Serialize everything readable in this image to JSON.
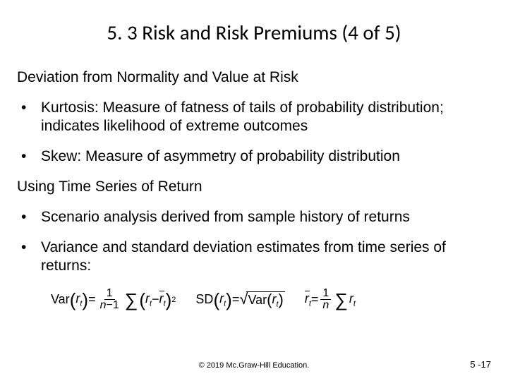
{
  "title": "5. 3 Risk and Risk Premiums (4 of 5)",
  "section1": {
    "heading": "Deviation from Normality and Value at Risk",
    "bullets": [
      "Kurtosis: Measure of fatness of tails of probability distribution; indicates likelihood of extreme outcomes",
      "Skew: Measure of asymmetry of probability distribution"
    ]
  },
  "section2": {
    "heading": "Using Time Series of Return",
    "bullets": [
      "Scenario analysis derived from sample history of returns",
      "Variance and standard deviation estimates from time series of returns:"
    ]
  },
  "footer": "© 2019 Mc.Graw-Hill Education.",
  "pagenum": "5 -17"
}
